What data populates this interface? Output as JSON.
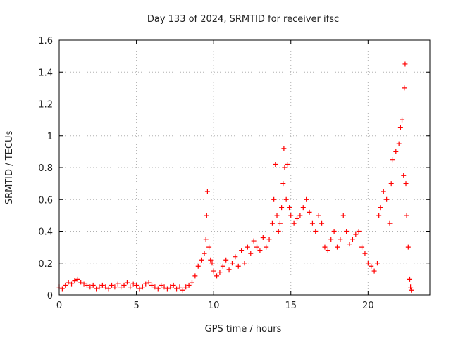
{
  "chart_data": {
    "type": "scatter",
    "title": "Day 133 of 2024, SRMTID for receiver ifsc",
    "xlabel": "GPS time / hours",
    "ylabel": "SRMTID / TECUs",
    "xlim": [
      0,
      24
    ],
    "ylim": [
      0,
      1.6
    ],
    "xticks": [
      0,
      5,
      10,
      15,
      20
    ],
    "xtick_labels": [
      "0",
      "5",
      "10",
      "15",
      "20"
    ],
    "yticks": [
      0,
      0.2,
      0.4,
      0.6,
      0.8,
      1.0,
      1.2,
      1.4,
      1.6
    ],
    "ytick_labels": [
      "0",
      "0.2",
      "0.4",
      "0.6",
      "0.8",
      "1",
      "1.2",
      "1.4",
      "1.6"
    ],
    "grid": true,
    "marker": "+",
    "color": "#ff0000",
    "series": [
      {
        "name": "SRMTID",
        "points": [
          [
            0.0,
            0.05
          ],
          [
            0.2,
            0.04
          ],
          [
            0.4,
            0.06
          ],
          [
            0.6,
            0.08
          ],
          [
            0.8,
            0.07
          ],
          [
            1.0,
            0.09
          ],
          [
            1.2,
            0.1
          ],
          [
            1.4,
            0.08
          ],
          [
            1.6,
            0.07
          ],
          [
            1.8,
            0.06
          ],
          [
            2.0,
            0.05
          ],
          [
            2.2,
            0.06
          ],
          [
            2.4,
            0.04
          ],
          [
            2.6,
            0.05
          ],
          [
            2.8,
            0.06
          ],
          [
            3.0,
            0.05
          ],
          [
            3.2,
            0.04
          ],
          [
            3.4,
            0.06
          ],
          [
            3.6,
            0.05
          ],
          [
            3.8,
            0.07
          ],
          [
            4.0,
            0.05
          ],
          [
            4.2,
            0.06
          ],
          [
            4.4,
            0.08
          ],
          [
            4.6,
            0.05
          ],
          [
            4.8,
            0.07
          ],
          [
            5.0,
            0.06
          ],
          [
            5.2,
            0.04
          ],
          [
            5.4,
            0.05
          ],
          [
            5.6,
            0.07
          ],
          [
            5.8,
            0.08
          ],
          [
            6.0,
            0.06
          ],
          [
            6.2,
            0.05
          ],
          [
            6.4,
            0.04
          ],
          [
            6.6,
            0.06
          ],
          [
            6.8,
            0.05
          ],
          [
            7.0,
            0.04
          ],
          [
            7.2,
            0.05
          ],
          [
            7.4,
            0.06
          ],
          [
            7.6,
            0.04
          ],
          [
            7.8,
            0.05
          ],
          [
            8.0,
            0.03
          ],
          [
            8.2,
            0.05
          ],
          [
            8.4,
            0.06
          ],
          [
            8.6,
            0.08
          ],
          [
            8.8,
            0.12
          ],
          [
            9.0,
            0.18
          ],
          [
            9.2,
            0.22
          ],
          [
            9.4,
            0.26
          ],
          [
            9.5,
            0.35
          ],
          [
            9.55,
            0.5
          ],
          [
            9.6,
            0.65
          ],
          [
            9.7,
            0.3
          ],
          [
            9.8,
            0.22
          ],
          [
            9.9,
            0.2
          ],
          [
            10.0,
            0.15
          ],
          [
            10.2,
            0.12
          ],
          [
            10.4,
            0.14
          ],
          [
            10.6,
            0.18
          ],
          [
            10.8,
            0.22
          ],
          [
            11.0,
            0.16
          ],
          [
            11.2,
            0.2
          ],
          [
            11.4,
            0.24
          ],
          [
            11.6,
            0.18
          ],
          [
            11.8,
            0.28
          ],
          [
            12.0,
            0.2
          ],
          [
            12.2,
            0.3
          ],
          [
            12.4,
            0.26
          ],
          [
            12.6,
            0.34
          ],
          [
            12.8,
            0.3
          ],
          [
            13.0,
            0.28
          ],
          [
            13.2,
            0.36
          ],
          [
            13.4,
            0.3
          ],
          [
            13.6,
            0.35
          ],
          [
            13.8,
            0.45
          ],
          [
            13.9,
            0.6
          ],
          [
            14.0,
            0.82
          ],
          [
            14.1,
            0.5
          ],
          [
            14.2,
            0.4
          ],
          [
            14.3,
            0.45
          ],
          [
            14.4,
            0.55
          ],
          [
            14.5,
            0.7
          ],
          [
            14.55,
            0.92
          ],
          [
            14.6,
            0.8
          ],
          [
            14.7,
            0.6
          ],
          [
            14.8,
            0.82
          ],
          [
            14.9,
            0.55
          ],
          [
            15.0,
            0.5
          ],
          [
            15.2,
            0.45
          ],
          [
            15.4,
            0.48
          ],
          [
            15.6,
            0.5
          ],
          [
            15.8,
            0.55
          ],
          [
            16.0,
            0.6
          ],
          [
            16.2,
            0.52
          ],
          [
            16.4,
            0.45
          ],
          [
            16.6,
            0.4
          ],
          [
            16.8,
            0.5
          ],
          [
            17.0,
            0.45
          ],
          [
            17.2,
            0.3
          ],
          [
            17.4,
            0.28
          ],
          [
            17.6,
            0.35
          ],
          [
            17.8,
            0.4
          ],
          [
            18.0,
            0.3
          ],
          [
            18.2,
            0.35
          ],
          [
            18.4,
            0.5
          ],
          [
            18.6,
            0.4
          ],
          [
            18.8,
            0.32
          ],
          [
            19.0,
            0.35
          ],
          [
            19.2,
            0.38
          ],
          [
            19.4,
            0.4
          ],
          [
            19.6,
            0.3
          ],
          [
            19.8,
            0.26
          ],
          [
            20.0,
            0.2
          ],
          [
            20.2,
            0.18
          ],
          [
            20.4,
            0.15
          ],
          [
            20.6,
            0.2
          ],
          [
            20.7,
            0.5
          ],
          [
            20.8,
            0.55
          ],
          [
            21.0,
            0.65
          ],
          [
            21.2,
            0.6
          ],
          [
            21.4,
            0.45
          ],
          [
            21.5,
            0.7
          ],
          [
            21.6,
            0.85
          ],
          [
            21.8,
            0.9
          ],
          [
            22.0,
            0.95
          ],
          [
            22.1,
            1.05
          ],
          [
            22.2,
            1.1
          ],
          [
            22.3,
            0.75
          ],
          [
            22.35,
            1.3
          ],
          [
            22.4,
            1.45
          ],
          [
            22.45,
            0.7
          ],
          [
            22.5,
            0.5
          ],
          [
            22.6,
            0.3
          ],
          [
            22.7,
            0.1
          ],
          [
            22.75,
            0.05
          ],
          [
            22.8,
            0.03
          ]
        ]
      }
    ]
  }
}
